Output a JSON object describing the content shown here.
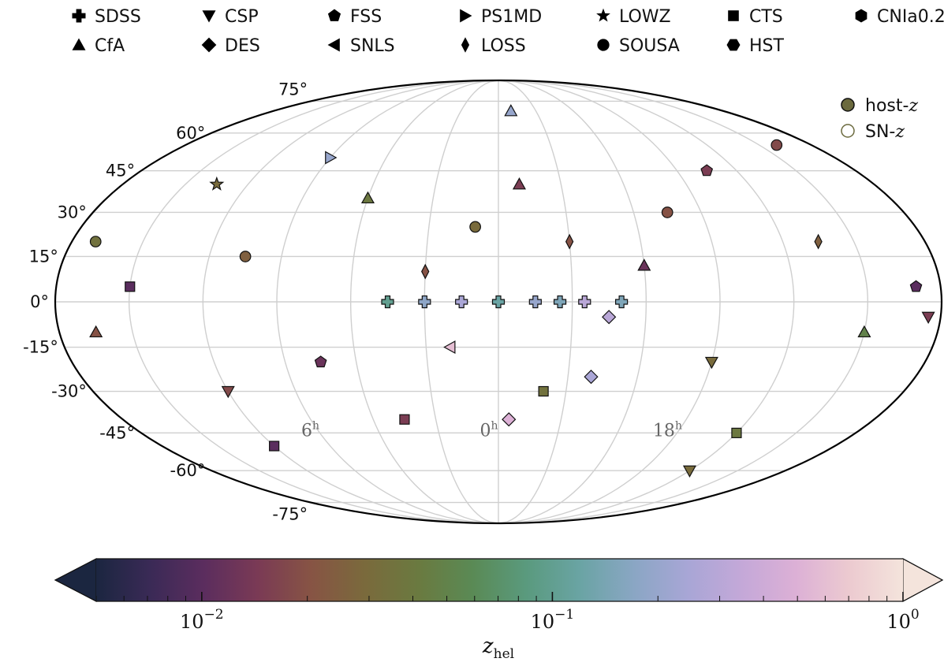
{
  "chart_data": {
    "type": "scatter",
    "projection": "mollweide",
    "legend": {
      "placement": "top",
      "entries": [
        {
          "label": "SDSS",
          "marker": "plus"
        },
        {
          "label": "CSP",
          "marker": "triangle-down"
        },
        {
          "label": "FSS",
          "marker": "pentagon"
        },
        {
          "label": "PS1MD",
          "marker": "triangle-right"
        },
        {
          "label": "LOWZ",
          "marker": "star"
        },
        {
          "label": "CTS",
          "marker": "square"
        },
        {
          "label": "CNIa0.2",
          "marker": "hexagon"
        },
        {
          "label": "CfA",
          "marker": "triangle-up"
        },
        {
          "label": "DES",
          "marker": "diamond"
        },
        {
          "label": "SNLS",
          "marker": "triangle-left"
        },
        {
          "label": "LOSS",
          "marker": "thin-diamond"
        },
        {
          "label": "SOUSA",
          "marker": "circle"
        },
        {
          "label": "HST",
          "marker": "hexagon-alt"
        }
      ]
    },
    "redshift_legend": {
      "placement": "top-right",
      "entries": [
        {
          "label": "host-",
          "math": "z",
          "style": "filled"
        },
        {
          "label": "SN-",
          "math": "z",
          "style": "open"
        }
      ]
    },
    "lat_ticks": [
      "75°",
      "60°",
      "45°",
      "30°",
      "15°",
      "0°",
      "-15°",
      "-30°",
      "-45°",
      "-60°",
      "-75°"
    ],
    "ra_ticks": [
      {
        "base": "6",
        "sup": "h"
      },
      {
        "base": "0",
        "sup": "h"
      },
      {
        "base": "18",
        "sup": "h"
      }
    ],
    "colorbar": {
      "label": "z",
      "label_sub": "hel",
      "scale": "log",
      "range": [
        0.005,
        1.0
      ],
      "extend": "both",
      "ticks": [
        {
          "base": "10",
          "exp": "−2",
          "value": 0.01
        },
        {
          "base": "10",
          "exp": "−1",
          "value": 0.1
        },
        {
          "base": "10",
          "exp": "0",
          "value": 1.0
        }
      ],
      "colormap": [
        "#1b2640",
        "#3a2a56",
        "#5b2d5e",
        "#7a3a55",
        "#875444",
        "#7a6a3c",
        "#6a7a40",
        "#5a8a55",
        "#5a9a7e",
        "#6aa4a4",
        "#8aa6c4",
        "#a8a6d6",
        "#c4a8d8",
        "#dcb0d6",
        "#eccad0",
        "#f4e4dc"
      ]
    },
    "points": [
      {
        "ra": 60,
        "dec": 12,
        "z": 0.012,
        "m": "triangle-up"
      },
      {
        "ra": 75,
        "dec": 30,
        "z": 0.02,
        "m": "circle"
      },
      {
        "ra": 90,
        "dec": -20,
        "z": 0.03,
        "m": "triangle-down"
      },
      {
        "ra": 105,
        "dec": 45,
        "z": 0.015,
        "m": "pentagon"
      },
      {
        "ra": 120,
        "dec": -45,
        "z": 0.04,
        "m": "square"
      },
      {
        "ra": 135,
        "dec": 20,
        "z": 0.025,
        "m": "thin-diamond"
      },
      {
        "ra": 150,
        "dec": -10,
        "z": 0.05,
        "m": "triangle-up"
      },
      {
        "ra": 160,
        "dec": 55,
        "z": 0.018,
        "m": "circle"
      },
      {
        "ra": 170,
        "dec": 5,
        "z": 0.01,
        "m": "pentagon"
      },
      {
        "ra": 45,
        "dec": -5,
        "z": 0.3,
        "m": "diamond"
      },
      {
        "ra": 40,
        "dec": -25,
        "z": 0.25,
        "m": "diamond"
      },
      {
        "ra": 30,
        "dec": 20,
        "z": 0.02,
        "m": "thin-diamond"
      },
      {
        "ra": 20,
        "dec": -30,
        "z": 0.035,
        "m": "square"
      },
      {
        "ra": 10,
        "dec": 40,
        "z": 0.015,
        "m": "triangle-up"
      },
      {
        "ra": 5,
        "dec": -40,
        "z": 0.5,
        "m": "diamond"
      },
      {
        "ra": -10,
        "dec": 25,
        "z": 0.03,
        "m": "circle"
      },
      {
        "ra": -20,
        "dec": -15,
        "z": 0.6,
        "m": "triangle-left"
      },
      {
        "ra": -30,
        "dec": 10,
        "z": 0.02,
        "m": "thin-diamond"
      },
      {
        "ra": -45,
        "dec": -40,
        "z": 0.015,
        "m": "square"
      },
      {
        "ra": -60,
        "dec": 35,
        "z": 0.04,
        "m": "triangle-up"
      },
      {
        "ra": -75,
        "dec": -20,
        "z": 0.012,
        "m": "pentagon"
      },
      {
        "ra": -90,
        "dec": 50,
        "z": 0.2,
        "m": "triangle-right"
      },
      {
        "ra": -105,
        "dec": 15,
        "z": 0.025,
        "m": "circle"
      },
      {
        "ra": -120,
        "dec": -30,
        "z": 0.018,
        "m": "triangle-down"
      },
      {
        "ra": -135,
        "dec": 40,
        "z": 0.03,
        "m": "star"
      },
      {
        "ra": -150,
        "dec": 5,
        "z": 0.01,
        "m": "square"
      },
      {
        "ra": -165,
        "dec": -10,
        "z": 0.02,
        "m": "triangle-up"
      },
      {
        "ra": -170,
        "dec": 20,
        "z": 0.035,
        "m": "circle"
      },
      {
        "ra": 175,
        "dec": -5,
        "z": 0.015,
        "m": "triangle-down"
      },
      {
        "ra": 25,
        "dec": 0,
        "z": 0.15,
        "m": "plus"
      },
      {
        "ra": 15,
        "dec": 0,
        "z": 0.2,
        "m": "plus"
      },
      {
        "ra": 0,
        "dec": 0,
        "z": 0.12,
        "m": "plus"
      },
      {
        "ra": -15,
        "dec": 0,
        "z": 0.25,
        "m": "plus"
      },
      {
        "ra": -30,
        "dec": 0,
        "z": 0.18,
        "m": "plus"
      },
      {
        "ra": -45,
        "dec": 0,
        "z": 0.1,
        "m": "plus"
      },
      {
        "ra": 35,
        "dec": 0,
        "z": 0.3,
        "m": "plus"
      },
      {
        "ra": 50,
        "dec": 0,
        "z": 0.15,
        "m": "plus"
      },
      {
        "ra": 10,
        "dec": 70,
        "z": 0.2,
        "m": "triangle-up"
      },
      {
        "ra": -120,
        "dec": -50,
        "z": 0.01,
        "m": "square"
      },
      {
        "ra": 120,
        "dec": -60,
        "z": 0.03,
        "m": "triangle-down"
      }
    ]
  }
}
